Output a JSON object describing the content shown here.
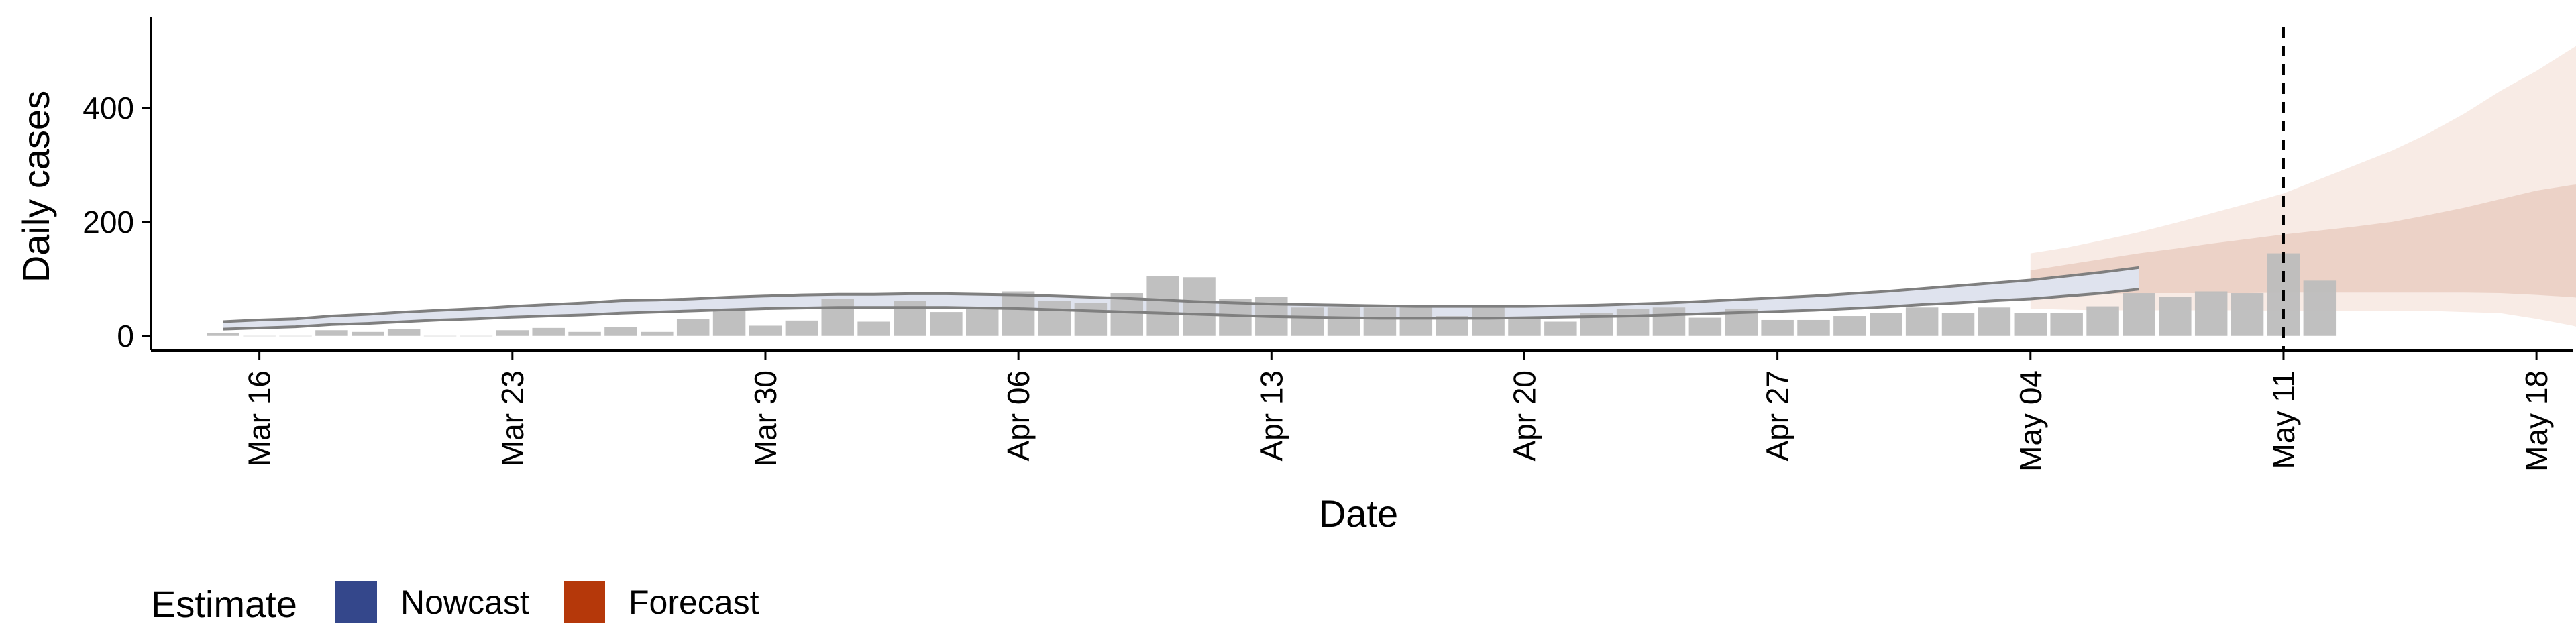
{
  "chart_data": {
    "type": "bar",
    "xlabel": "Date",
    "ylabel": "Daily cases",
    "ylim": [
      -25,
      560
    ],
    "yticks": [
      0,
      200,
      400
    ],
    "x_range": [
      "2020-03-13",
      "2020-05-19"
    ],
    "xticks": [
      {
        "date": "2020-03-16",
        "label": "Mar 16"
      },
      {
        "date": "2020-03-23",
        "label": "Mar 23"
      },
      {
        "date": "2020-03-30",
        "label": "Mar 30"
      },
      {
        "date": "2020-04-06",
        "label": "Apr 06"
      },
      {
        "date": "2020-04-13",
        "label": "Apr 13"
      },
      {
        "date": "2020-04-20",
        "label": "Apr 20"
      },
      {
        "date": "2020-04-27",
        "label": "Apr 27"
      },
      {
        "date": "2020-05-04",
        "label": "May 04"
      },
      {
        "date": "2020-05-11",
        "label": "May 11"
      },
      {
        "date": "2020-05-18",
        "label": "May 18"
      }
    ],
    "vline_date": "2020-05-11",
    "colors": {
      "bars": "#bdbdbd",
      "nowcast": "#34478b",
      "forecast": "#b5380a",
      "forecast_band_outer": "#f8ebe5",
      "forecast_band_inner": "#ecd2c7",
      "nowcast_band": "#dfe3ee",
      "nowcast_line": "#7f7f7f",
      "vline": "#000000"
    },
    "observed": {
      "name": "Daily cases",
      "start_date": "2020-03-15",
      "values": [
        5,
        0,
        0,
        10,
        7,
        12,
        0,
        0,
        10,
        14,
        7,
        16,
        7,
        30,
        48,
        18,
        27,
        65,
        25,
        62,
        42,
        50,
        78,
        62,
        58,
        75,
        105,
        103,
        65,
        68,
        50,
        50,
        50,
        55,
        35,
        55,
        30,
        25,
        40,
        48,
        50,
        32,
        48,
        28,
        28,
        35,
        40,
        50,
        40,
        50,
        40,
        40,
        52,
        75,
        68,
        78,
        75,
        145,
        97
      ]
    },
    "nowcast": {
      "name": "Nowcast",
      "start_date": "2020-03-15",
      "upper": [
        25,
        28,
        30,
        35,
        38,
        42,
        45,
        48,
        52,
        55,
        58,
        62,
        63,
        65,
        68,
        70,
        72,
        73,
        73,
        74,
        74,
        73,
        72,
        70,
        68,
        66,
        63,
        60,
        58,
        56,
        55,
        54,
        53,
        52,
        52,
        52,
        52,
        53,
        54,
        56,
        58,
        61,
        64,
        67,
        70,
        74,
        78,
        83,
        88,
        93,
        98,
        105,
        112,
        120
      ],
      "lower": [
        12,
        14,
        16,
        20,
        22,
        25,
        28,
        30,
        33,
        35,
        37,
        40,
        42,
        44,
        46,
        48,
        49,
        50,
        50,
        50,
        50,
        49,
        48,
        46,
        44,
        42,
        40,
        38,
        36,
        34,
        33,
        32,
        31,
        31,
        31,
        31,
        32,
        33,
        34,
        35,
        37,
        39,
        41,
        43,
        45,
        48,
        51,
        55,
        58,
        62,
        65,
        70,
        75,
        82
      ]
    },
    "forecast": {
      "name": "Forecast",
      "start_date": "2020-05-04",
      "outer_upper": [
        145,
        155,
        168,
        182,
        198,
        215,
        232,
        250,
        275,
        300,
        325,
        355,
        390,
        430,
        465,
        505,
        545
      ],
      "outer_lower": [
        48,
        46,
        45,
        45,
        45,
        45,
        45,
        44,
        44,
        44,
        44,
        44,
        42,
        40,
        30,
        18,
        0
      ],
      "inner_upper": [
        115,
        125,
        135,
        145,
        153,
        162,
        170,
        178,
        185,
        192,
        200,
        212,
        225,
        240,
        255,
        265,
        272
      ],
      "inner_lower": [
        70,
        72,
        74,
        75,
        75,
        75,
        75,
        76,
        76,
        76,
        76,
        76,
        76,
        75,
        72,
        68,
        62
      ]
    },
    "legend": {
      "title": "Estimate",
      "items": [
        {
          "label": "Nowcast",
          "color": "#34478b"
        },
        {
          "label": "Forecast",
          "color": "#b5380a"
        }
      ]
    }
  }
}
